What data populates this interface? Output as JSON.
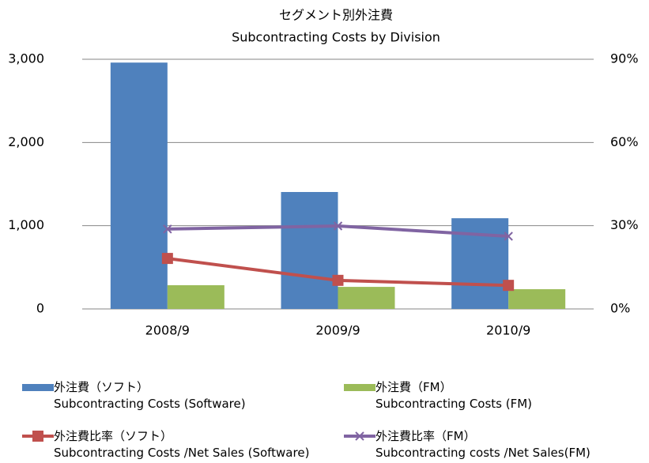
{
  "chart_data": {
    "type": "bar",
    "title": "セグメント別外注費",
    "subtitle": "Subcontracting Costs by Division",
    "categories": [
      "2008/9",
      "2009/9",
      "2010/9"
    ],
    "series": [
      {
        "name": "外注費（ソフト）\nSubcontracting Costs (Software)",
        "type": "bar",
        "color": "#4f81bd",
        "values": [
          2960,
          1405,
          1090
        ]
      },
      {
        "name": "外注費（FM）\nSubcontracting Costs (FM)",
        "type": "bar",
        "color": "#9bbb59",
        "values": [
          285,
          265,
          237
        ]
      },
      {
        "name": "外注費比率（ソフト）\nSubcontracting Costs /Net Sales (Software)",
        "type": "line",
        "axis": "y2",
        "marker": "square",
        "color": "#c0504d",
        "values": [
          18.2,
          10.3,
          8.5
        ]
      },
      {
        "name": "外注費比率（FM）\nSubcontracting costs /Net Sales(FM)",
        "type": "line",
        "axis": "y2",
        "marker": "x",
        "color": "#8064a2",
        "values": [
          28.8,
          29.9,
          26.2
        ]
      }
    ],
    "ylim": [
      0,
      3000
    ],
    "yticks": [
      0,
      {
        "value": 1000,
        "label": "1,000"
      },
      {
        "value": 2000,
        "label": "2,000"
      },
      {
        "value": 3000,
        "label": "3,000"
      }
    ],
    "y2lim": [
      0,
      90
    ],
    "y2ticks": [
      {
        "value": 0,
        "label": "0%"
      },
      {
        "value": 30,
        "label": "30%"
      },
      {
        "value": 60,
        "label": "60%"
      },
      {
        "value": 90,
        "label": "90%"
      }
    ],
    "grid": true,
    "legend": "bottom"
  }
}
